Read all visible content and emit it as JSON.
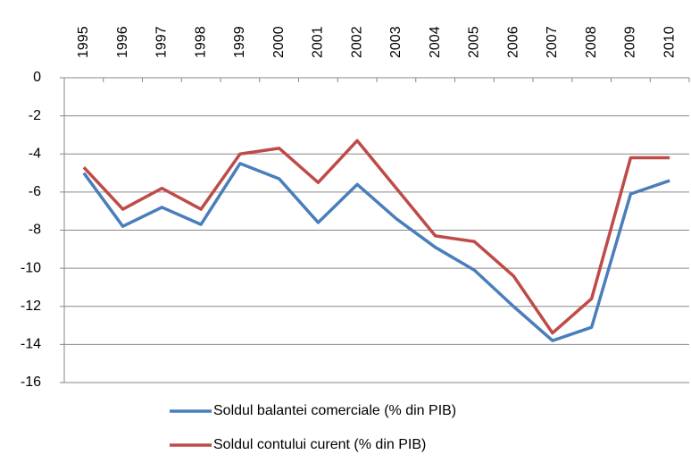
{
  "chart_data": {
    "type": "line",
    "categories": [
      "1995",
      "1996",
      "1997",
      "1998",
      "1999",
      "2000",
      "2001",
      "2002",
      "2003",
      "2004",
      "2005",
      "2006",
      "2007",
      "2008",
      "2009",
      "2010"
    ],
    "series": [
      {
        "name": "Soldul balantei comerciale (% din PIB)",
        "color": "#4a7ebb",
        "values": [
          -5.0,
          -7.8,
          -6.8,
          -7.7,
          -4.5,
          -5.3,
          -7.6,
          -5.6,
          -7.4,
          -8.9,
          -10.1,
          -12.0,
          -13.8,
          -13.1,
          -6.1,
          -5.4
        ]
      },
      {
        "name": "Soldul contului curent (% din PIB)",
        "color": "#be4b48",
        "values": [
          -4.7,
          -6.9,
          -5.8,
          -6.9,
          -4.0,
          -3.7,
          -5.5,
          -3.3,
          -5.8,
          -8.3,
          -8.6,
          -10.4,
          -13.4,
          -11.6,
          -4.2,
          -4.2
        ]
      }
    ],
    "ylim": [
      -16,
      0
    ],
    "yticks": [
      0,
      -2,
      -4,
      -6,
      -8,
      -10,
      -12,
      -14,
      -16
    ],
    "grid": true
  }
}
